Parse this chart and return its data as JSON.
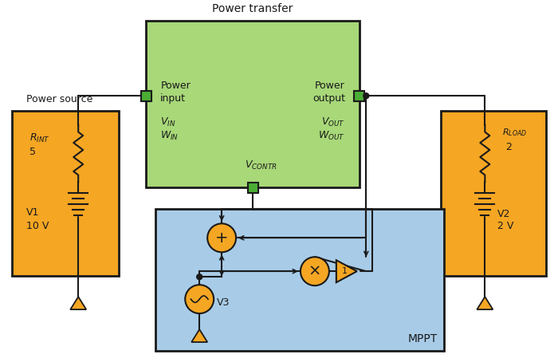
{
  "orange": "#F5A623",
  "green_box": "#A8D878",
  "green_port": "#4BAD35",
  "blue_box": "#A8CCE8",
  "black": "#1A1A1A",
  "title_pt": "Power transfer",
  "label_src": "Power source",
  "label_mppt": "MPPT",
  "figw": 7.0,
  "figh": 4.54,
  "dpi": 100
}
